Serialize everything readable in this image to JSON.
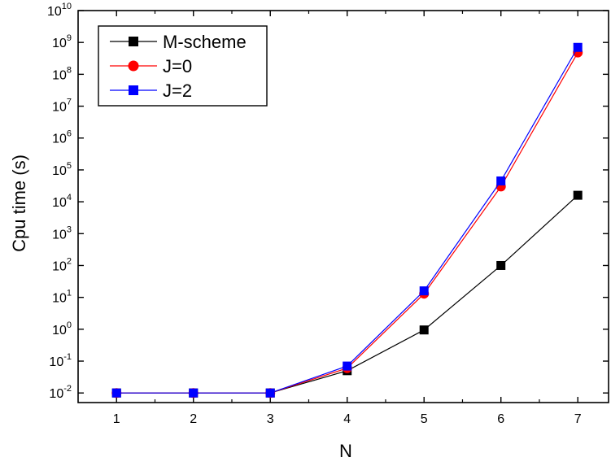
{
  "chart_data": {
    "type": "line",
    "x": [
      1,
      2,
      3,
      4,
      5,
      6,
      7
    ],
    "series": [
      {
        "name": "M-scheme",
        "marker": "square",
        "color": "#000000",
        "values": [
          0.01,
          0.01,
          0.01,
          0.05,
          0.95,
          100,
          16000
        ]
      },
      {
        "name": "J=0",
        "marker": "circle",
        "color": "#ff0000",
        "values": [
          0.01,
          0.01,
          0.01,
          0.06,
          13,
          30000,
          480000000
        ]
      },
      {
        "name": "J=2",
        "marker": "square",
        "color": "#0000ff",
        "values": [
          0.01,
          0.01,
          0.01,
          0.07,
          16,
          45000,
          700000000
        ]
      }
    ],
    "title": "",
    "xlabel": "N",
    "ylabel": "Cpu time (s)",
    "xlim": [
      0.5,
      7.4
    ],
    "ylim": [
      0.005,
      10000000000
    ],
    "yscale": "log",
    "xticks": [
      "1",
      "2",
      "3",
      "4",
      "5",
      "6",
      "7"
    ],
    "ytick_exponents": [
      "-2",
      "-1",
      "0",
      "1",
      "2",
      "3",
      "4",
      "5",
      "6",
      "7",
      "8",
      "9",
      "10"
    ],
    "ytick_base": "10",
    "grid": false,
    "legend_position": "top-left"
  }
}
